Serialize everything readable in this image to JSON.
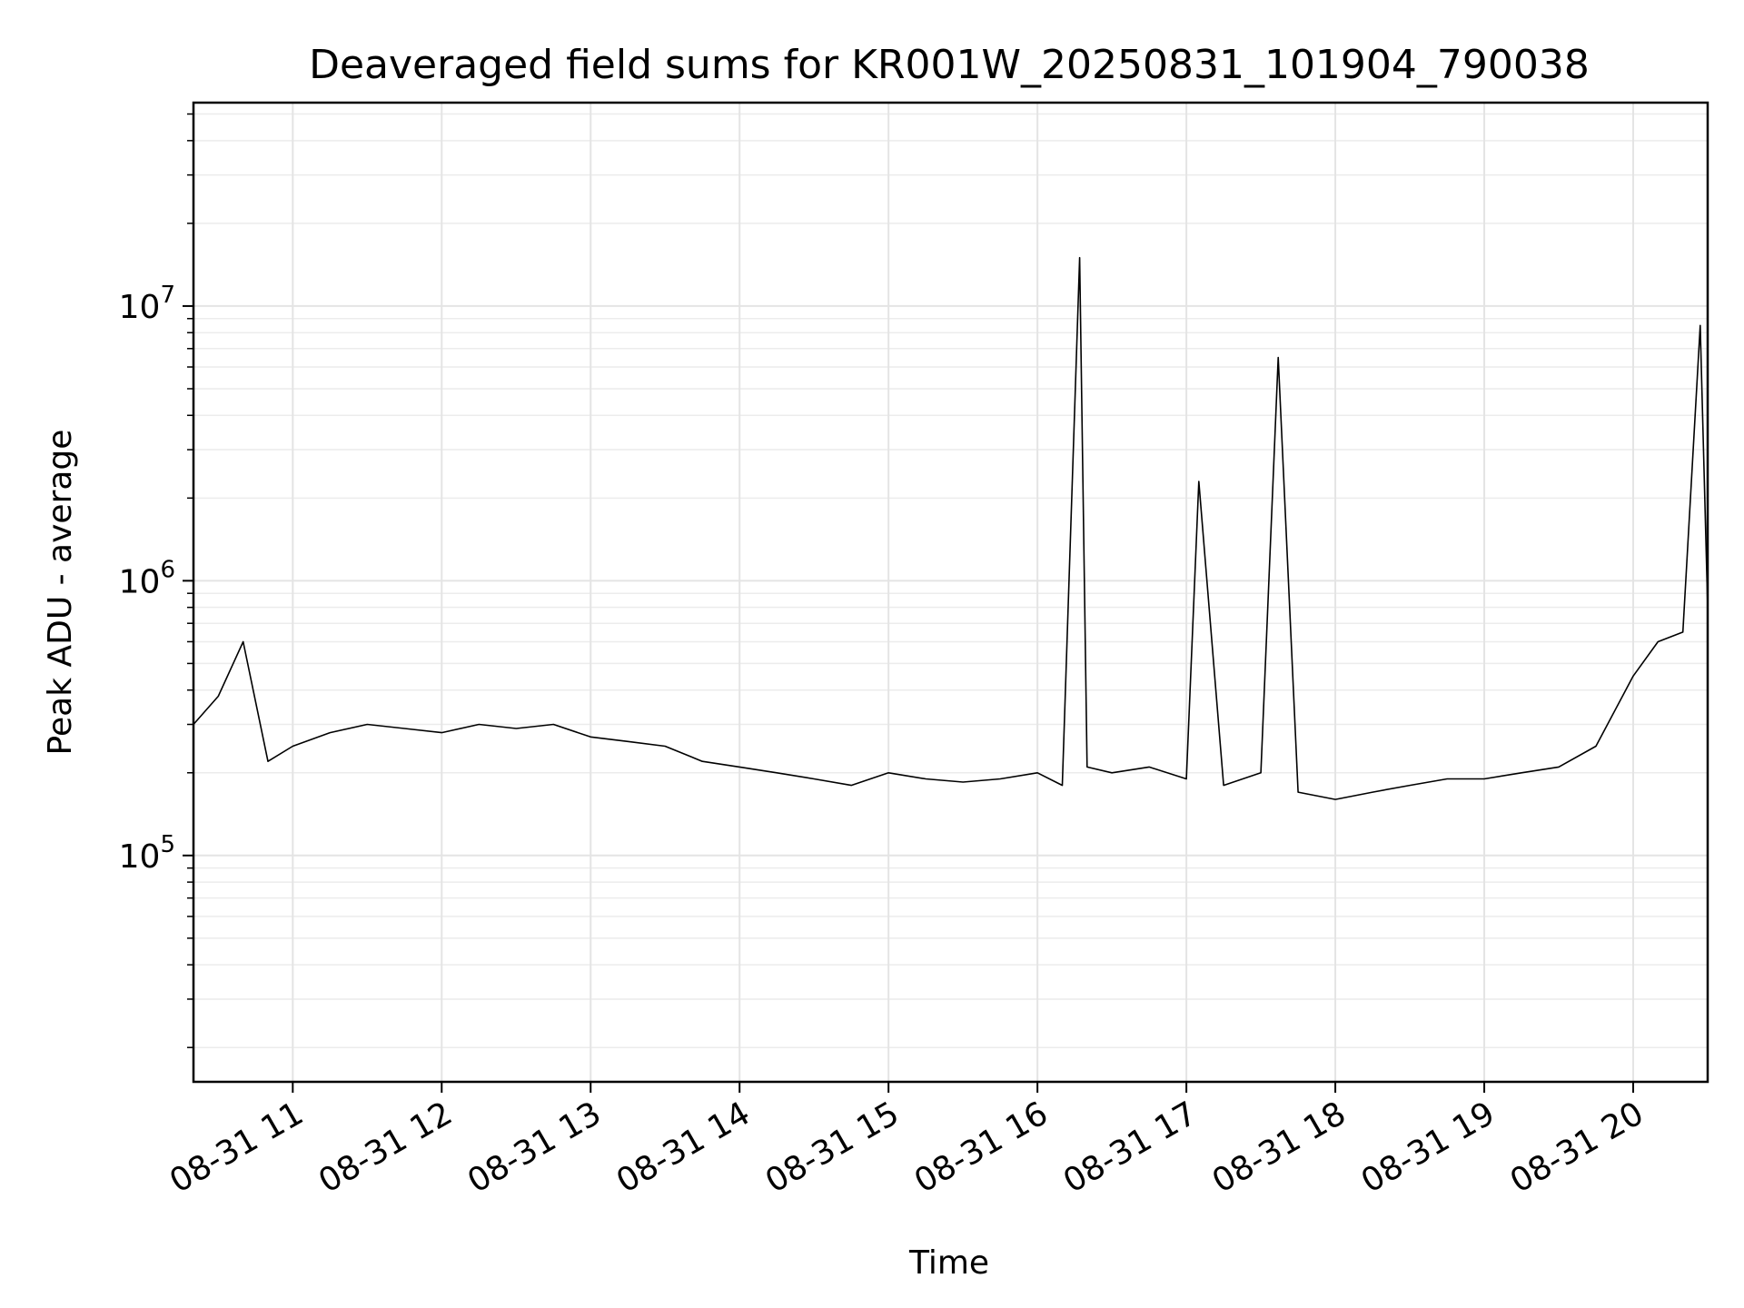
{
  "chart_data": {
    "type": "line",
    "title": "Deaveraged field sums for KR001W_20250831_101904_790038",
    "xlabel": "Time",
    "ylabel": "Peak ADU - average",
    "xlim": [
      "2025-08-31 10:20",
      "2025-08-31 20:30"
    ],
    "ylim": [
      15000,
      55000000
    ],
    "yscale": "log",
    "grid": true,
    "line_color": "#000000",
    "x_ticks": [
      "08-31 11",
      "08-31 12",
      "08-31 13",
      "08-31 14",
      "08-31 15",
      "08-31 16",
      "08-31 17",
      "08-31 18",
      "08-31 19",
      "08-31 20"
    ],
    "y_ticks": [
      {
        "value": 100000,
        "base": "10",
        "exp": "5"
      },
      {
        "value": 1000000,
        "base": "10",
        "exp": "6"
      },
      {
        "value": 10000000,
        "base": "10",
        "exp": "7"
      }
    ],
    "series": [
      {
        "x": [
          "2025-08-31 10:20",
          "2025-08-31 10:30",
          "2025-08-31 10:40",
          "2025-08-31 10:50",
          "2025-08-31 11:00",
          "2025-08-31 11:15",
          "2025-08-31 11:30",
          "2025-08-31 11:45",
          "2025-08-31 12:00",
          "2025-08-31 12:15",
          "2025-08-31 12:30",
          "2025-08-31 12:45",
          "2025-08-31 13:00",
          "2025-08-31 13:15",
          "2025-08-31 13:30",
          "2025-08-31 13:45",
          "2025-08-31 14:00",
          "2025-08-31 14:15",
          "2025-08-31 14:30",
          "2025-08-31 14:45",
          "2025-08-31 15:00",
          "2025-08-31 15:15",
          "2025-08-31 15:30",
          "2025-08-31 15:45",
          "2025-08-31 16:00",
          "2025-08-31 16:10",
          "2025-08-31 16:17",
          "2025-08-31 16:20",
          "2025-08-31 16:30",
          "2025-08-31 16:45",
          "2025-08-31 17:00",
          "2025-08-31 17:05",
          "2025-08-31 17:15",
          "2025-08-31 17:30",
          "2025-08-31 17:37",
          "2025-08-31 17:45",
          "2025-08-31 18:00",
          "2025-08-31 18:15",
          "2025-08-31 18:30",
          "2025-08-31 18:45",
          "2025-08-31 19:00",
          "2025-08-31 19:15",
          "2025-08-31 19:30",
          "2025-08-31 19:45",
          "2025-08-31 20:00",
          "2025-08-31 20:10",
          "2025-08-31 20:20",
          "2025-08-31 20:27",
          "2025-08-31 20:30"
        ],
        "y": [
          300000,
          380000,
          600000,
          220000,
          250000,
          280000,
          300000,
          290000,
          280000,
          300000,
          290000,
          300000,
          270000,
          260000,
          250000,
          220000,
          210000,
          200000,
          190000,
          180000,
          200000,
          190000,
          185000,
          190000,
          200000,
          180000,
          15000000,
          210000,
          200000,
          210000,
          190000,
          2300000,
          180000,
          200000,
          6500000,
          170000,
          160000,
          170000,
          180000,
          190000,
          190000,
          200000,
          210000,
          250000,
          450000,
          600000,
          650000,
          8500000,
          800000
        ]
      }
    ]
  }
}
